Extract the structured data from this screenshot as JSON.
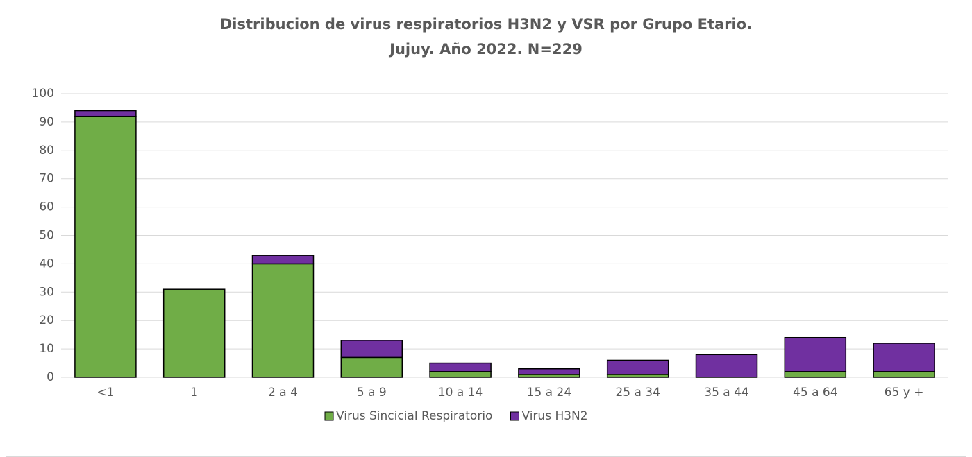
{
  "chart_data": {
    "type": "stacked_bar",
    "title": [
      "Distribucion de virus respiratorios H3N2 y VSR por Grupo Etario.",
      "Jujuy. Año 2022. N=229"
    ],
    "categories": [
      "<1",
      "1",
      "2 a 4",
      "5 a 9",
      "10 a 14",
      "15 a 24",
      "25 a 34",
      "35 a 44",
      "45 a 64",
      "65 y +"
    ],
    "series": [
      {
        "name": "Virus Sincicial Respiratorio",
        "color": "#70ad47",
        "values": [
          92,
          31,
          40,
          7,
          2,
          1,
          1,
          0,
          2,
          2
        ]
      },
      {
        "name": "Virus H3N2",
        "color": "#7030a0",
        "values": [
          2,
          0,
          3,
          6,
          3,
          2,
          5,
          8,
          12,
          10
        ]
      }
    ],
    "ylim": [
      0,
      100
    ],
    "yticks": [
      0,
      10,
      20,
      30,
      40,
      50,
      60,
      70,
      80,
      90,
      100
    ],
    "grid": true,
    "legend": "bottom"
  }
}
